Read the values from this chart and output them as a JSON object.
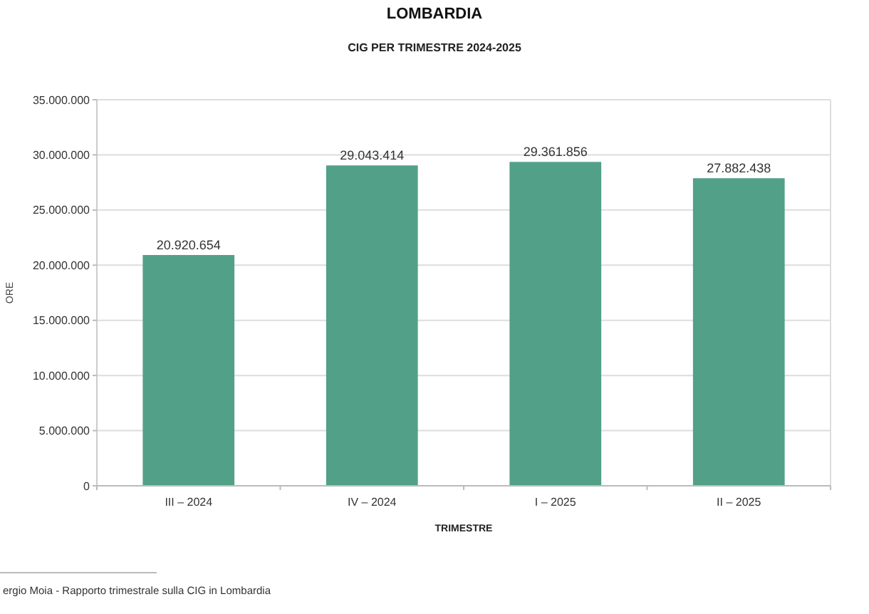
{
  "chart_data": {
    "type": "bar",
    "title": "LOMBARDIA",
    "subtitle": "CIG PER TRIMESTRE 2024-2025",
    "xlabel": "TRIMESTRE",
    "ylabel": "ORE",
    "categories": [
      "III – 2024",
      "IV – 2024",
      "I – 2025",
      "II – 2025"
    ],
    "values": [
      20920654,
      29043414,
      29361856,
      27882438
    ],
    "color": "#52a088",
    "ylim": [
      0,
      35000000
    ],
    "yticks": [
      {
        "value": 0,
        "label": "0"
      },
      {
        "value": 5000000,
        "label": "5.000.000"
      },
      {
        "value": 10000000,
        "label": "10.000.000"
      },
      {
        "value": 15000000,
        "label": "15.000.000"
      },
      {
        "value": 20000000,
        "label": "20.000.000"
      },
      {
        "value": 25000000,
        "label": "25.000.000"
      },
      {
        "value": 30000000,
        "label": "30.000.000"
      },
      {
        "value": 35000000,
        "label": "35.000.000"
      }
    ],
    "grid": "y",
    "value_labels": [
      "20.920.654",
      "29.043.414",
      "29.361.856",
      "27.882.438"
    ],
    "annotations": [
      "ergio Moia - Rapporto trimestrale sulla CIG in Lombardia"
    ]
  }
}
